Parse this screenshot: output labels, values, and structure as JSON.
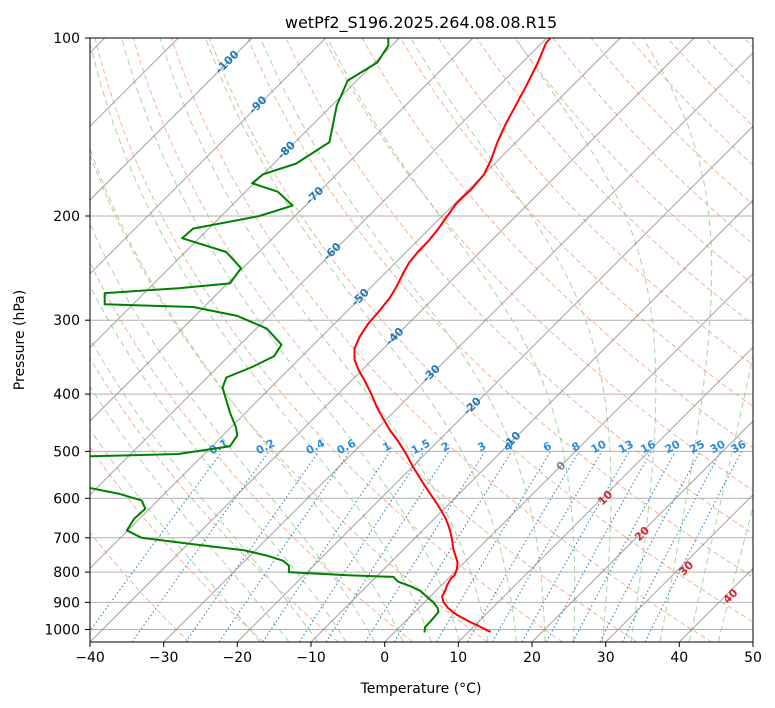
{
  "chart_data": {
    "type": "line",
    "title": "wetPf2_S196.2025.264.08.08.R15",
    "xlabel": "Temperature (°C)",
    "ylabel": "Pressure (hPa)",
    "xlim": [
      -40,
      50
    ],
    "ylim": [
      1050,
      100
    ],
    "y_scale": "log",
    "x_ticks": [
      "−40",
      "−30",
      "−20",
      "−10",
      "0",
      "10",
      "20",
      "30",
      "40",
      "50"
    ],
    "x_tick_values": [
      -40,
      -30,
      -20,
      -10,
      0,
      10,
      20,
      30,
      40,
      50
    ],
    "y_ticks": [
      "100",
      "200",
      "300",
      "400",
      "500",
      "600",
      "700",
      "800",
      "900",
      "1000"
    ],
    "y_tick_values": [
      100,
      200,
      300,
      400,
      500,
      600,
      700,
      800,
      900,
      1000
    ],
    "grid": true,
    "series": [
      {
        "name": "",
        "color": "#ff0000",
        "points": [
          [
            14.4,
            1010
          ],
          [
            13.0,
            990
          ],
          [
            11.5,
            970
          ],
          [
            9.8,
            945
          ],
          [
            8.6,
            920
          ],
          [
            8.0,
            900
          ],
          [
            7.8,
            880
          ],
          [
            8.2,
            860
          ],
          [
            8.5,
            840
          ],
          [
            9.0,
            820
          ],
          [
            9.5,
            810
          ],
          [
            9.8,
            790
          ],
          [
            9.9,
            770
          ],
          [
            9.6,
            750
          ],
          [
            9.3,
            730
          ],
          [
            9.2,
            710
          ],
          [
            9.0,
            690
          ],
          [
            8.7,
            670
          ],
          [
            8.3,
            650
          ],
          [
            7.7,
            630
          ],
          [
            7.0,
            610
          ],
          [
            6.2,
            590
          ],
          [
            5.4,
            570
          ],
          [
            4.6,
            550
          ],
          [
            3.8,
            530
          ],
          [
            3.1,
            510
          ],
          [
            2.7,
            500
          ],
          [
            1.8,
            480
          ],
          [
            0.7,
            460
          ],
          [
            -0.2,
            440
          ],
          [
            -1.1,
            420
          ],
          [
            -1.8,
            400
          ],
          [
            -2.7,
            380
          ],
          [
            -3.5,
            365
          ],
          [
            -4.1,
            350
          ],
          [
            -4.1,
            335
          ],
          [
            -3.4,
            320
          ],
          [
            -2.3,
            305
          ],
          [
            -0.8,
            290
          ],
          [
            0.7,
            275
          ],
          [
            1.7,
            262
          ],
          [
            2.5,
            250
          ],
          [
            3.3,
            240
          ],
          [
            4.5,
            230
          ],
          [
            6.0,
            220
          ],
          [
            7.3,
            210
          ],
          [
            8.5,
            200
          ],
          [
            9.8,
            190
          ],
          [
            11.8,
            180
          ],
          [
            13.5,
            170
          ],
          [
            14.5,
            160
          ],
          [
            15.3,
            150
          ],
          [
            16.4,
            140
          ],
          [
            17.8,
            130
          ],
          [
            19.3,
            120
          ],
          [
            20.8,
            110
          ],
          [
            21.9,
            102
          ],
          [
            22.5,
            100
          ]
        ]
      },
      {
        "name": "",
        "color": "#008000",
        "points": [
          [
            5.4,
            1012
          ],
          [
            5.5,
            990
          ],
          [
            6.2,
            970
          ],
          [
            6.8,
            950
          ],
          [
            7.3,
            935
          ],
          [
            7.2,
            920
          ],
          [
            6.6,
            900
          ],
          [
            5.7,
            880
          ],
          [
            4.8,
            860
          ],
          [
            3.5,
            845
          ],
          [
            1.8,
            830
          ],
          [
            1.2,
            815
          ],
          [
            -5.0,
            810
          ],
          [
            -13.0,
            800
          ],
          [
            -13.0,
            780
          ],
          [
            -13.8,
            765
          ],
          [
            -16.0,
            750
          ],
          [
            -19.0,
            735
          ],
          [
            -25.0,
            720
          ],
          [
            -33.0,
            700
          ],
          [
            -35.0,
            680
          ],
          [
            -34.0,
            650
          ],
          [
            -32.5,
            625
          ],
          [
            -33.0,
            605
          ],
          [
            -36.0,
            590
          ],
          [
            -40.5,
            575
          ],
          [
            -41.0,
            510
          ],
          [
            -28.0,
            505
          ],
          [
            -21.0,
            490
          ],
          [
            -20.0,
            470
          ],
          [
            -20.2,
            455
          ],
          [
            -21.0,
            430
          ],
          [
            -21.5,
            410
          ],
          [
            -22.0,
            390
          ],
          [
            -21.5,
            375
          ],
          [
            -18.0,
            360
          ],
          [
            -15.0,
            345
          ],
          [
            -14.0,
            330
          ],
          [
            -16.0,
            310
          ],
          [
            -20.0,
            295
          ],
          [
            -26.0,
            285
          ],
          [
            -38.0,
            282
          ],
          [
            -38.0,
            270
          ],
          [
            -28.0,
            265
          ],
          [
            -21.0,
            260
          ],
          [
            -19.5,
            245
          ],
          [
            -21.5,
            230
          ],
          [
            -27.5,
            218
          ],
          [
            -26.0,
            210
          ],
          [
            -17.0,
            200
          ],
          [
            -12.5,
            192
          ],
          [
            -14.5,
            182
          ],
          [
            -18.0,
            176
          ],
          [
            -16.5,
            170
          ],
          [
            -12.0,
            163
          ],
          [
            -7.5,
            150
          ],
          [
            -6.5,
            130
          ],
          [
            -5.0,
            118
          ],
          [
            -1.0,
            110
          ],
          [
            0.5,
            103
          ],
          [
            0.5,
            100
          ]
        ]
      }
    ],
    "mixing_ratio_labels": [
      "0.1",
      "0.2",
      "0.4",
      "0.6",
      "1",
      "1.5",
      "2",
      "3",
      "4",
      "6",
      "8",
      "10",
      "13",
      "16",
      "20",
      "25",
      "30",
      "36"
    ],
    "isotherm_labels": [
      "-100",
      "-90",
      "-80",
      "-70",
      "-60",
      "-50",
      "-40",
      "-30",
      "-20",
      "-10"
    ],
    "isotherm_label_values": [
      -100,
      -90,
      -80,
      -70,
      -60,
      -50,
      -40,
      -30,
      -20,
      -10
    ],
    "isotherm_label_pressures": [
      110,
      130,
      155,
      185,
      230,
      275,
      320,
      370,
      420,
      480
    ],
    "moist_adiabat_labels": [
      "0",
      "10",
      "20",
      "30",
      "40"
    ],
    "moist_adiabat_label_positions": [
      [
        24,
        530
      ],
      [
        30,
        600
      ],
      [
        35,
        690
      ],
      [
        41,
        790
      ],
      [
        47,
        880
      ]
    ],
    "colors": {
      "temperature": "#ff0000",
      "dewpoint": "#008000",
      "grid": "#b0b0b0",
      "isotherm": "#8a8a8a",
      "dry_adiabat": "#f4a582",
      "moist_adiabat": "#9ccf9a",
      "mixing_ratio": "#1f77b4",
      "mixing_ratio_label": "#2b8cde",
      "isotherm_label": "#1f77b4",
      "moist_label": "#d62728",
      "zero_label": "#808080"
    }
  }
}
